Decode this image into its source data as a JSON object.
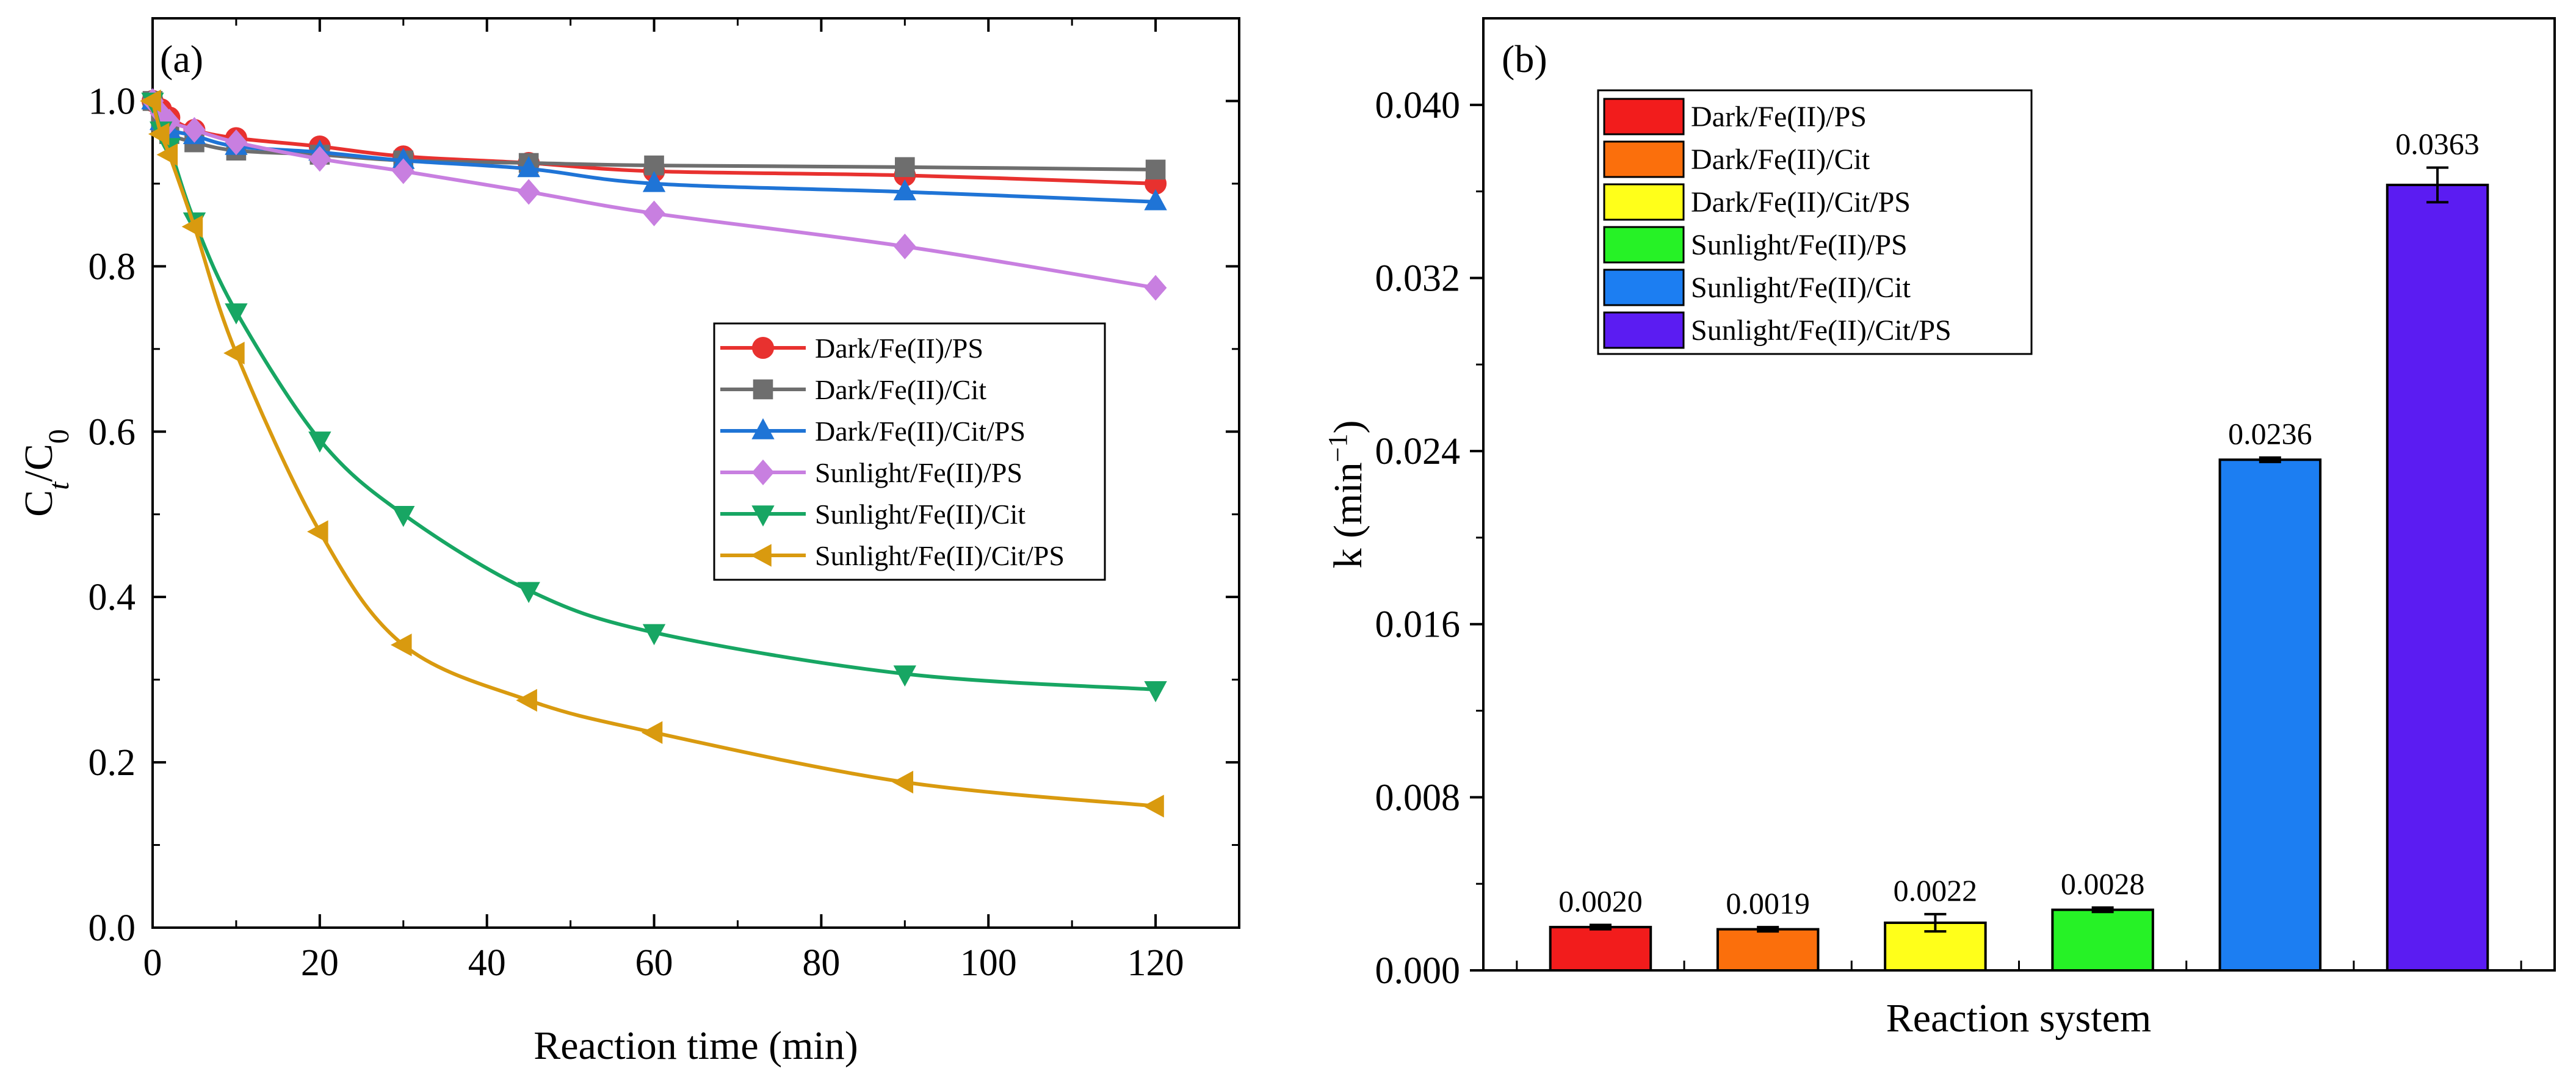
{
  "figure": {
    "panel_a_label": "(a)",
    "panel_b_label": "(b)"
  },
  "chart_data": [
    {
      "type": "line",
      "title": "",
      "panel": "(a)",
      "xlabel": "Reaction time (min)",
      "ylabel_main": "C",
      "ylabel_sub_t": "t",
      "ylabel_slash": "/C",
      "ylabel_sub_0": "0",
      "xlim": [
        0,
        130
      ],
      "ylim": [
        0,
        1.1
      ],
      "xticks": [
        0,
        20,
        40,
        60,
        80,
        100,
        120
      ],
      "xtick_labels": [
        "0",
        "20",
        "40",
        "60",
        "80",
        "100",
        "120"
      ],
      "yticks": [
        0.0,
        0.2,
        0.4,
        0.6,
        0.8,
        1.0
      ],
      "ytick_labels": [
        "0.0",
        "0.2",
        "0.4",
        "0.6",
        "0.8",
        "1.0"
      ],
      "x": [
        0,
        1,
        2,
        5,
        10,
        20,
        30,
        45,
        60,
        90,
        120
      ],
      "legend_position": "center-right",
      "series": [
        {
          "name": "Dark/Fe(II)/PS",
          "color": "#e8312f",
          "marker": "circle",
          "values": [
            1.0,
            0.99,
            0.98,
            0.965,
            0.955,
            0.945,
            0.933,
            0.925,
            0.915,
            0.91,
            0.9
          ]
        },
        {
          "name": "Dark/Fe(II)/Cit",
          "color": "#6e6e6e",
          "marker": "square",
          "values": [
            1.0,
            0.975,
            0.96,
            0.95,
            0.94,
            0.935,
            0.928,
            0.925,
            0.922,
            0.92,
            0.917
          ]
        },
        {
          "name": "Dark/Fe(II)/Cit/PS",
          "color": "#1f74d6",
          "marker": "triangle-up",
          "values": [
            1.0,
            0.975,
            0.965,
            0.958,
            0.945,
            0.938,
            0.928,
            0.918,
            0.9,
            0.89,
            0.878
          ]
        },
        {
          "name": "Sunlight/Fe(II)/PS",
          "color": "#c87fe0",
          "marker": "diamond",
          "values": [
            1.0,
            0.985,
            0.975,
            0.965,
            0.95,
            0.93,
            0.915,
            0.89,
            0.864,
            0.824,
            0.774
          ]
        },
        {
          "name": "Sunlight/Fe(II)/Cit",
          "color": "#17a663",
          "marker": "triangle-down",
          "values": [
            1.0,
            0.965,
            0.945,
            0.855,
            0.745,
            0.59,
            0.5,
            0.408,
            0.357,
            0.307,
            0.288
          ]
        },
        {
          "name": "Sunlight/Fe(II)/Cit/PS",
          "color": "#d99a0f",
          "marker": "triangle-left",
          "values": [
            1.0,
            0.96,
            0.935,
            0.848,
            0.695,
            0.479,
            0.342,
            0.275,
            0.236,
            0.176,
            0.147
          ]
        }
      ]
    },
    {
      "type": "bar",
      "title": "",
      "panel": "(b)",
      "xlabel": "Reaction system",
      "ylabel_main": "k (min",
      "ylabel_sup": "−1",
      "ylabel_close": ")",
      "ylim": [
        0,
        0.044
      ],
      "yticks": [
        0.0,
        0.008,
        0.016,
        0.024,
        0.032,
        0.04
      ],
      "ytick_labels": [
        "0.000",
        "0.008",
        "0.016",
        "0.024",
        "0.032",
        "0.040"
      ],
      "categories": [
        "Dark/Fe(II)/PS",
        "Dark/Fe(II)/Cit",
        "Dark/Fe(II)/Cit/PS",
        "Sunlight/Fe(II)/PS",
        "Sunlight/Fe(II)/Cit",
        "Sunlight/Fe(II)/Cit/PS"
      ],
      "values": [
        0.002,
        0.0019,
        0.0022,
        0.0028,
        0.0236,
        0.0363
      ],
      "value_labels": [
        "0.0020",
        "0.0019",
        "0.0022",
        "0.0028",
        "0.0236",
        "0.0363"
      ],
      "errors": [
        0.0001,
        0.0001,
        0.0004,
        0.0001,
        0.0001,
        0.0008
      ],
      "colors": [
        "#f21c1c",
        "#fb6f0c",
        "#ffff1a",
        "#26f226",
        "#1c7ef2",
        "#5b1cf2"
      ],
      "legend_position": "top-left"
    }
  ]
}
